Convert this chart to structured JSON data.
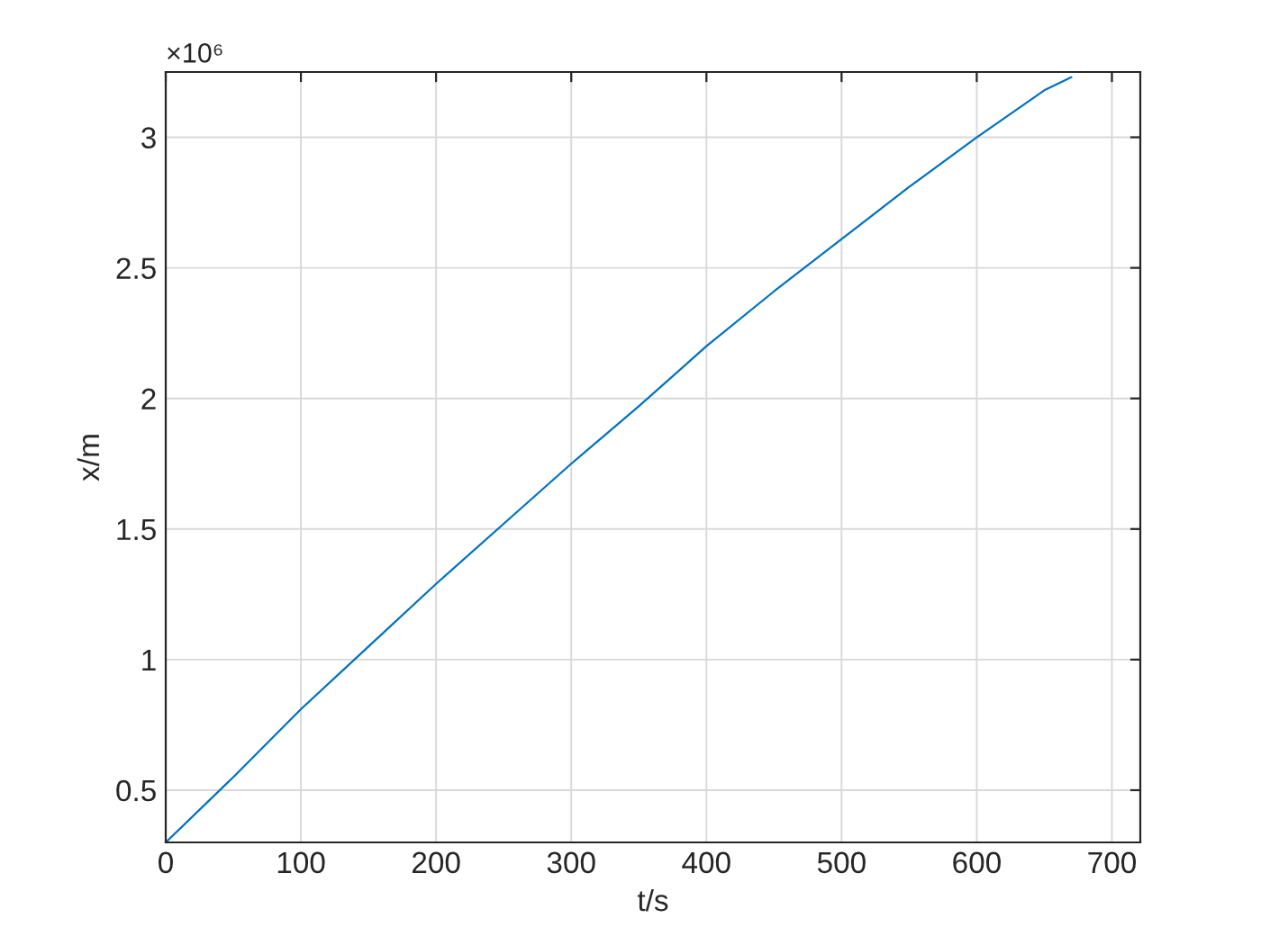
{
  "chart_data": {
    "type": "line",
    "xlabel": "t/s",
    "ylabel": "x/m",
    "annotations": [
      "×10⁶"
    ],
    "x": [
      0,
      50,
      100,
      150,
      200,
      250,
      300,
      350,
      400,
      450,
      500,
      550,
      600,
      650,
      670
    ],
    "series": [
      {
        "color": "#0072bd",
        "values": [
          0.3,
          0.55,
          0.81,
          1.05,
          1.29,
          1.52,
          1.75,
          1.97,
          2.2,
          2.41,
          2.61,
          2.81,
          3.0,
          3.18,
          3.23
        ]
      }
    ],
    "xlim": [
      0,
      721
    ],
    "xticks": [
      0,
      100,
      200,
      300,
      400,
      500,
      600,
      700
    ],
    "ylim": [
      0.3,
      3.25
    ],
    "yticks": [
      0.5,
      1,
      1.5,
      2,
      2.5,
      3
    ],
    "grid": true,
    "marker": "none",
    "line_style": "solid"
  }
}
